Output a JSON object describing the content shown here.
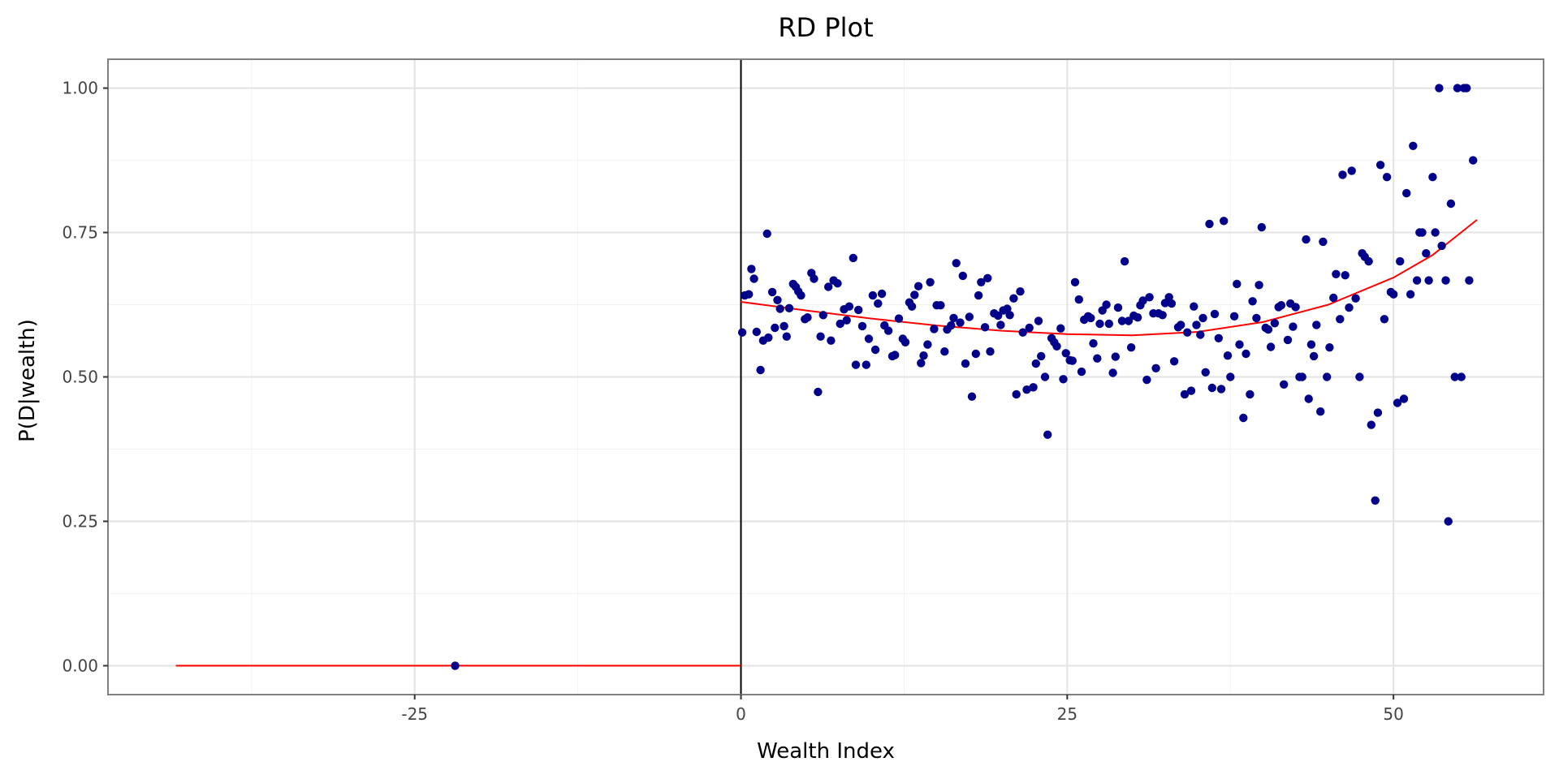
{
  "chart_data": {
    "type": "scatter",
    "title": "RD Plot",
    "xlabel": "Wealth Index",
    "ylabel": "P(D|wealth)",
    "xlim": [
      -48.5,
      61.5
    ],
    "ylim": [
      -0.05,
      1.05
    ],
    "x_ticks": [
      -25,
      0,
      25,
      50
    ],
    "x_tick_labels": [
      "-25",
      "0",
      "25",
      "50"
    ],
    "y_ticks": [
      0,
      0.25,
      0.5,
      0.75,
      1.0
    ],
    "y_tick_labels": [
      "0.00",
      "0.25",
      "0.50",
      "0.75",
      "1.00"
    ],
    "grid": true,
    "cutoff": 0,
    "colors": {
      "points": "#00008b",
      "fit": "#ff0000",
      "cutoff": "#000000"
    },
    "series": [
      {
        "type": "scatter",
        "points": [
          [
            -21.9,
            0.0
          ],
          [
            0.1,
            0.577
          ],
          [
            0.3,
            0.641
          ],
          [
            0.6,
            0.643
          ],
          [
            0.8,
            0.687
          ],
          [
            1.0,
            0.67
          ],
          [
            1.2,
            0.578
          ],
          [
            1.5,
            0.512
          ],
          [
            1.7,
            0.563
          ],
          [
            2.0,
            0.748
          ],
          [
            2.1,
            0.568
          ],
          [
            2.4,
            0.647
          ],
          [
            2.6,
            0.585
          ],
          [
            2.8,
            0.633
          ],
          [
            3.0,
            0.618
          ],
          [
            3.3,
            0.588
          ],
          [
            3.5,
            0.57
          ],
          [
            3.7,
            0.619
          ],
          [
            4.0,
            0.661
          ],
          [
            4.2,
            0.656
          ],
          [
            4.4,
            0.648
          ],
          [
            4.6,
            0.641
          ],
          [
            4.9,
            0.6
          ],
          [
            5.1,
            0.603
          ],
          [
            5.4,
            0.68
          ],
          [
            5.6,
            0.67
          ],
          [
            5.9,
            0.474
          ],
          [
            6.1,
            0.57
          ],
          [
            6.3,
            0.607
          ],
          [
            6.7,
            0.656
          ],
          [
            6.9,
            0.563
          ],
          [
            7.1,
            0.667
          ],
          [
            7.4,
            0.662
          ],
          [
            7.6,
            0.592
          ],
          [
            7.9,
            0.617
          ],
          [
            8.1,
            0.598
          ],
          [
            8.3,
            0.622
          ],
          [
            8.6,
            0.706
          ],
          [
            8.8,
            0.521
          ],
          [
            9.0,
            0.616
          ],
          [
            9.3,
            0.588
          ],
          [
            9.6,
            0.521
          ],
          [
            9.8,
            0.566
          ],
          [
            10.1,
            0.641
          ],
          [
            10.3,
            0.547
          ],
          [
            10.5,
            0.627
          ],
          [
            10.8,
            0.644
          ],
          [
            11.0,
            0.589
          ],
          [
            11.3,
            0.58
          ],
          [
            11.6,
            0.536
          ],
          [
            11.8,
            0.538
          ],
          [
            12.1,
            0.601
          ],
          [
            12.4,
            0.566
          ],
          [
            12.6,
            0.56
          ],
          [
            12.9,
            0.629
          ],
          [
            13.1,
            0.622
          ],
          [
            13.3,
            0.642
          ],
          [
            13.6,
            0.657
          ],
          [
            13.8,
            0.524
          ],
          [
            14.0,
            0.537
          ],
          [
            14.3,
            0.556
          ],
          [
            14.5,
            0.664
          ],
          [
            14.8,
            0.583
          ],
          [
            15.0,
            0.624
          ],
          [
            15.3,
            0.624
          ],
          [
            15.6,
            0.544
          ],
          [
            15.8,
            0.582
          ],
          [
            16.1,
            0.589
          ],
          [
            16.3,
            0.602
          ],
          [
            16.5,
            0.697
          ],
          [
            16.8,
            0.594
          ],
          [
            17.0,
            0.675
          ],
          [
            17.2,
            0.523
          ],
          [
            17.5,
            0.604
          ],
          [
            17.7,
            0.466
          ],
          [
            18.0,
            0.54
          ],
          [
            18.2,
            0.641
          ],
          [
            18.4,
            0.664
          ],
          [
            18.7,
            0.586
          ],
          [
            18.9,
            0.671
          ],
          [
            19.1,
            0.544
          ],
          [
            19.4,
            0.61
          ],
          [
            19.7,
            0.606
          ],
          [
            19.9,
            0.59
          ],
          [
            20.1,
            0.615
          ],
          [
            20.4,
            0.618
          ],
          [
            20.6,
            0.607
          ],
          [
            20.9,
            0.636
          ],
          [
            21.1,
            0.47
          ],
          [
            21.4,
            0.648
          ],
          [
            21.6,
            0.577
          ],
          [
            21.9,
            0.478
          ],
          [
            22.1,
            0.585
          ],
          [
            22.4,
            0.482
          ],
          [
            22.6,
            0.523
          ],
          [
            22.8,
            0.597
          ],
          [
            23.0,
            0.536
          ],
          [
            23.3,
            0.5
          ],
          [
            23.5,
            0.4
          ],
          [
            23.8,
            0.567
          ],
          [
            24.0,
            0.56
          ],
          [
            24.2,
            0.553
          ],
          [
            24.5,
            0.584
          ],
          [
            24.7,
            0.496
          ],
          [
            24.9,
            0.541
          ],
          [
            25.2,
            0.529
          ],
          [
            25.4,
            0.528
          ],
          [
            25.6,
            0.664
          ],
          [
            25.9,
            0.634
          ],
          [
            26.1,
            0.509
          ],
          [
            26.3,
            0.599
          ],
          [
            26.6,
            0.605
          ],
          [
            26.8,
            0.602
          ],
          [
            27.0,
            0.558
          ],
          [
            27.3,
            0.532
          ],
          [
            27.5,
            0.592
          ],
          [
            27.7,
            0.615
          ],
          [
            28.0,
            0.625
          ],
          [
            28.2,
            0.592
          ],
          [
            28.5,
            0.507
          ],
          [
            28.7,
            0.535
          ],
          [
            28.9,
            0.62
          ],
          [
            29.2,
            0.597
          ],
          [
            29.4,
            0.7
          ],
          [
            29.7,
            0.597
          ],
          [
            29.9,
            0.551
          ],
          [
            30.1,
            0.606
          ],
          [
            30.4,
            0.603
          ],
          [
            30.6,
            0.624
          ],
          [
            30.8,
            0.632
          ],
          [
            31.1,
            0.495
          ],
          [
            31.3,
            0.638
          ],
          [
            31.6,
            0.61
          ],
          [
            31.8,
            0.515
          ],
          [
            32.0,
            0.61
          ],
          [
            32.3,
            0.607
          ],
          [
            32.5,
            0.628
          ],
          [
            32.8,
            0.638
          ],
          [
            33.0,
            0.627
          ],
          [
            33.2,
            0.527
          ],
          [
            33.5,
            0.586
          ],
          [
            33.7,
            0.59
          ],
          [
            34.0,
            0.47
          ],
          [
            34.2,
            0.577
          ],
          [
            34.5,
            0.476
          ],
          [
            34.7,
            0.622
          ],
          [
            34.9,
            0.59
          ],
          [
            35.2,
            0.573
          ],
          [
            35.4,
            0.602
          ],
          [
            35.6,
            0.508
          ],
          [
            35.9,
            0.765
          ],
          [
            36.1,
            0.481
          ],
          [
            36.3,
            0.609
          ],
          [
            36.6,
            0.567
          ],
          [
            36.8,
            0.479
          ],
          [
            37.0,
            0.77
          ],
          [
            37.3,
            0.537
          ],
          [
            37.5,
            0.5
          ],
          [
            37.8,
            0.605
          ],
          [
            38.0,
            0.661
          ],
          [
            38.2,
            0.556
          ],
          [
            38.5,
            0.429
          ],
          [
            38.7,
            0.54
          ],
          [
            39.0,
            0.47
          ],
          [
            39.2,
            0.631
          ],
          [
            39.5,
            0.602
          ],
          [
            39.7,
            0.659
          ],
          [
            39.9,
            0.759
          ],
          [
            40.2,
            0.585
          ],
          [
            40.4,
            0.582
          ],
          [
            40.6,
            0.552
          ],
          [
            40.9,
            0.593
          ],
          [
            41.2,
            0.621
          ],
          [
            41.4,
            0.624
          ],
          [
            41.6,
            0.487
          ],
          [
            41.9,
            0.564
          ],
          [
            42.1,
            0.627
          ],
          [
            42.3,
            0.587
          ],
          [
            42.5,
            0.621
          ],
          [
            42.8,
            0.5
          ],
          [
            43.0,
            0.5
          ],
          [
            43.3,
            0.738
          ],
          [
            43.5,
            0.462
          ],
          [
            43.7,
            0.556
          ],
          [
            43.9,
            0.536
          ],
          [
            44.1,
            0.59
          ],
          [
            44.4,
            0.44
          ],
          [
            44.6,
            0.734
          ],
          [
            44.9,
            0.5
          ],
          [
            45.1,
            0.551
          ],
          [
            45.4,
            0.637
          ],
          [
            45.6,
            0.678
          ],
          [
            45.9,
            0.6
          ],
          [
            46.1,
            0.85
          ],
          [
            46.3,
            0.676
          ],
          [
            46.6,
            0.62
          ],
          [
            46.8,
            0.857
          ],
          [
            47.1,
            0.636
          ],
          [
            47.4,
            0.5
          ],
          [
            47.6,
            0.714
          ],
          [
            47.8,
            0.708
          ],
          [
            48.1,
            0.7
          ],
          [
            48.3,
            0.417
          ],
          [
            48.6,
            0.286
          ],
          [
            48.8,
            0.438
          ],
          [
            49.0,
            0.867
          ],
          [
            49.3,
            0.6
          ],
          [
            49.5,
            0.846
          ],
          [
            49.8,
            0.647
          ],
          [
            50.0,
            0.643
          ],
          [
            50.3,
            0.455
          ],
          [
            50.5,
            0.7
          ],
          [
            50.8,
            0.462
          ],
          [
            51.0,
            0.818
          ],
          [
            51.3,
            0.643
          ],
          [
            51.5,
            0.9
          ],
          [
            51.8,
            0.667
          ],
          [
            52.0,
            0.75
          ],
          [
            52.2,
            0.75
          ],
          [
            52.5,
            0.714
          ],
          [
            52.7,
            0.667
          ],
          [
            53.0,
            0.846
          ],
          [
            53.2,
            0.75
          ],
          [
            53.5,
            1.0
          ],
          [
            53.7,
            0.727
          ],
          [
            54.0,
            0.667
          ],
          [
            54.2,
            0.25
          ],
          [
            54.4,
            0.8
          ],
          [
            54.7,
            0.5
          ],
          [
            54.9,
            1.0
          ],
          [
            55.2,
            0.5
          ],
          [
            55.4,
            1.0
          ],
          [
            55.6,
            1.0
          ],
          [
            55.8,
            0.667
          ],
          [
            56.1,
            0.875
          ]
        ]
      },
      {
        "type": "line",
        "points": [
          [
            -43.3,
            0.0
          ],
          [
            0,
            0.0
          ]
        ]
      },
      {
        "type": "line",
        "points": [
          [
            0,
            0.63
          ],
          [
            5,
            0.615
          ],
          [
            10,
            0.601
          ],
          [
            15,
            0.589
          ],
          [
            20,
            0.58
          ],
          [
            25,
            0.574
          ],
          [
            30,
            0.572
          ],
          [
            35,
            0.578
          ],
          [
            40,
            0.595
          ],
          [
            45,
            0.625
          ],
          [
            50,
            0.672
          ],
          [
            53,
            0.711
          ],
          [
            56.4,
            0.772
          ]
        ]
      }
    ]
  }
}
